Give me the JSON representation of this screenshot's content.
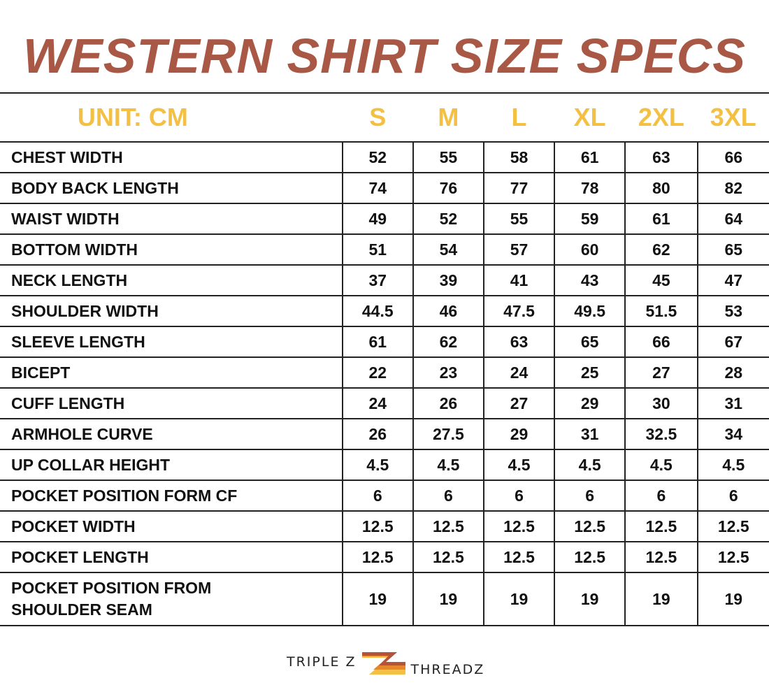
{
  "title": "WESTERN SHIRT SIZE SPECS",
  "unit_label": "UNIT: CM",
  "sizes": [
    "S",
    "M",
    "L",
    "XL",
    "2XL",
    "3XL"
  ],
  "rows": [
    {
      "label": "CHEST WIDTH",
      "values": [
        "52",
        "55",
        "58",
        "61",
        "63",
        "66"
      ]
    },
    {
      "label": "BODY BACK LENGTH",
      "values": [
        "74",
        "76",
        "77",
        "78",
        "80",
        "82"
      ]
    },
    {
      "label": "WAIST WIDTH",
      "values": [
        "49",
        "52",
        "55",
        "59",
        "61",
        "64"
      ]
    },
    {
      "label": "BOTTOM WIDTH",
      "values": [
        "51",
        "54",
        "57",
        "60",
        "62",
        "65"
      ]
    },
    {
      "label": "NECK LENGTH",
      "values": [
        "37",
        "39",
        "41",
        "43",
        "45",
        "47"
      ]
    },
    {
      "label": "SHOULDER WIDTH",
      "values": [
        "44.5",
        "46",
        "47.5",
        "49.5",
        "51.5",
        "53"
      ]
    },
    {
      "label": "SLEEVE LENGTH",
      "values": [
        "61",
        "62",
        "63",
        "65",
        "66",
        "67"
      ]
    },
    {
      "label": "BICEPT",
      "values": [
        "22",
        "23",
        "24",
        "25",
        "27",
        "28"
      ]
    },
    {
      "label": "CUFF LENGTH",
      "values": [
        "24",
        "26",
        "27",
        "29",
        "30",
        "31"
      ]
    },
    {
      "label": "ARMHOLE CURVE",
      "values": [
        "26",
        "27.5",
        "29",
        "31",
        "32.5",
        "34"
      ]
    },
    {
      "label": "UP COLLAR HEIGHT",
      "values": [
        "4.5",
        "4.5",
        "4.5",
        "4.5",
        "4.5",
        "4.5"
      ]
    },
    {
      "label": "POCKET POSITION FORM CF",
      "values": [
        "6",
        "6",
        "6",
        "6",
        "6",
        "6"
      ]
    },
    {
      "label": "POCKET WIDTH",
      "values": [
        "12.5",
        "12.5",
        "12.5",
        "12.5",
        "12.5",
        "12.5"
      ]
    },
    {
      "label": "POCKET LENGTH",
      "values": [
        "12.5",
        "12.5",
        "12.5",
        "12.5",
        "12.5",
        "12.5"
      ]
    },
    {
      "label": "POCKET POSITION FROM SHOULDER SEAM",
      "values": [
        "19",
        "19",
        "19",
        "19",
        "19",
        "19"
      ]
    }
  ],
  "logo": {
    "left": "TRIPLE Z",
    "right": "THREADZ"
  },
  "colors": {
    "title": "#a85844",
    "header": "#f4c044",
    "logo_stripes": [
      "#b5533a",
      "#e8862e",
      "#f4c044"
    ]
  }
}
